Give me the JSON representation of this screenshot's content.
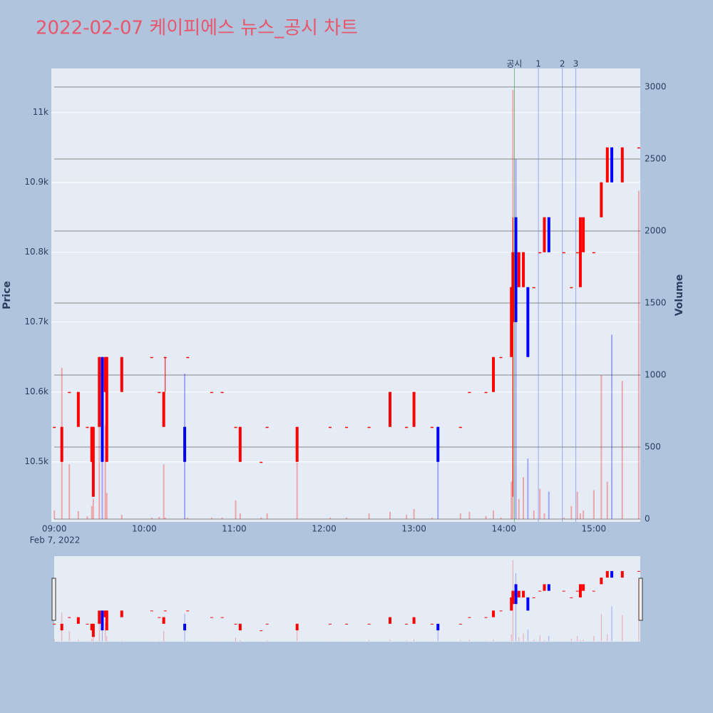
{
  "chart_data": {
    "type": "candlestick",
    "title": "2022-02-07 케이피에스 뉴스_공시 차트",
    "y_label": "Price",
    "y2_label": "Volume",
    "x_date_label": "Feb 7, 2022",
    "xlim": [
      "08:58",
      "15:31"
    ],
    "xticks": [
      "09:00",
      "10:00",
      "11:00",
      "12:00",
      "13:00",
      "14:00",
      "15:00"
    ],
    "ylim": [
      10414,
      11063
    ],
    "yticks": [
      {
        "value": 10500,
        "label": "10.5k"
      },
      {
        "value": 10600,
        "label": "10.6k"
      },
      {
        "value": 10700,
        "label": "10.7k"
      },
      {
        "value": 10800,
        "label": "10.8k"
      },
      {
        "value": 10900,
        "label": "10.9k"
      },
      {
        "value": 11000,
        "label": "11k"
      }
    ],
    "y2lim": [
      -20,
      3129
    ],
    "y2ticks": [
      0,
      500,
      1000,
      1500,
      2000,
      2500,
      3000
    ],
    "increasing_color": "#ff0000",
    "decreasing_color": "#0000ff",
    "x": [
      "09:00",
      "09:05",
      "09:10",
      "09:16",
      "09:22",
      "09:25",
      "09:26",
      "09:30",
      "09:32",
      "09:34",
      "09:35",
      "09:45",
      "10:05",
      "10:10",
      "10:13",
      "10:14",
      "10:27",
      "10:29",
      "10:45",
      "10:52",
      "11:01",
      "11:04",
      "11:18",
      "11:22",
      "11:42",
      "12:04",
      "12:15",
      "12:30",
      "12:44",
      "12:55",
      "13:00",
      "13:12",
      "13:16",
      "13:31",
      "13:37",
      "13:48",
      "13:53",
      "13:58",
      "14:05",
      "14:06",
      "14:08",
      "14:10",
      "14:13",
      "14:16",
      "14:20",
      "14:24",
      "14:27",
      "14:30",
      "14:40",
      "14:45",
      "14:49",
      "14:51",
      "14:53",
      "15:00",
      "15:05",
      "15:09",
      "15:12",
      "15:19",
      "15:30"
    ],
    "open": [
      10550,
      10500,
      10600,
      10550,
      10550,
      10500,
      10450,
      10550,
      10650,
      10600,
      10500,
      10600,
      10650,
      10600,
      10550,
      10650,
      10550,
      10650,
      10600,
      10600,
      10550,
      10500,
      10500,
      10550,
      10500,
      10550,
      10550,
      10550,
      10550,
      10550,
      10550,
      10550,
      10550,
      10550,
      10600,
      10600,
      10600,
      10650,
      10650,
      10700,
      10850,
      10750,
      10750,
      10750,
      10750,
      10800,
      10800,
      10850,
      10800,
      10750,
      10800,
      10750,
      10800,
      10800,
      10850,
      10900,
      10950,
      10900,
      10950
    ],
    "high": [
      10550,
      10550,
      10600,
      10600,
      10550,
      10550,
      10550,
      10650,
      10650,
      10650,
      10650,
      10650,
      10650,
      10600,
      10600,
      10650,
      10550,
      10650,
      10600,
      10600,
      10550,
      10550,
      10500,
      10550,
      10550,
      10550,
      10550,
      10550,
      10600,
      10550,
      10600,
      10550,
      10550,
      10550,
      10600,
      10600,
      10650,
      10650,
      10750,
      10850,
      10850,
      10800,
      10800,
      10750,
      10750,
      10800,
      10850,
      10850,
      10800,
      10750,
      10800,
      10850,
      10850,
      10800,
      10900,
      10950,
      10950,
      10950,
      10950
    ],
    "low": [
      10550,
      10500,
      10600,
      10550,
      10550,
      10500,
      10450,
      10550,
      10500,
      10600,
      10500,
      10600,
      10650,
      10600,
      10550,
      10600,
      10500,
      10650,
      10600,
      10600,
      10550,
      10500,
      10500,
      10550,
      10500,
      10550,
      10550,
      10550,
      10550,
      10550,
      10550,
      10550,
      10500,
      10550,
      10600,
      10600,
      10600,
      10650,
      10650,
      10450,
      10700,
      10750,
      10750,
      10650,
      10750,
      10800,
      10800,
      10800,
      10800,
      10750,
      10800,
      10750,
      10800,
      10800,
      10850,
      10900,
      10900,
      10900,
      10950
    ],
    "close": [
      10550,
      10550,
      10600,
      10600,
      10550,
      10550,
      10550,
      10650,
      10500,
      10650,
      10650,
      10650,
      10650,
      10600,
      10600,
      10650,
      10500,
      10650,
      10600,
      10600,
      10550,
      10550,
      10500,
      10550,
      10550,
      10550,
      10550,
      10550,
      10600,
      10550,
      10600,
      10550,
      10500,
      10550,
      10600,
      10600,
      10650,
      10650,
      10750,
      10800,
      10700,
      10800,
      10800,
      10650,
      10750,
      10800,
      10850,
      10800,
      10800,
      10750,
      10800,
      10850,
      10850,
      10800,
      10900,
      10950,
      10900,
      10950,
      10950
    ],
    "volume": [
      60,
      1050,
      380,
      55,
      20,
      90,
      140,
      640,
      400,
      650,
      180,
      30,
      10,
      15,
      380,
      10,
      1010,
      10,
      10,
      10,
      130,
      40,
      10,
      40,
      390,
      10,
      10,
      40,
      50,
      30,
      70,
      10,
      620,
      40,
      50,
      20,
      60,
      10,
      260,
      2980,
      2500,
      140,
      290,
      420,
      60,
      210,
      40,
      190,
      10,
      90,
      190,
      40,
      60,
      200,
      1000,
      260,
      1280,
      960,
      2280
    ],
    "events": [
      {
        "x": "14:07",
        "label": "공시",
        "color": "#2ca02c"
      },
      {
        "x": "14:23",
        "label": "1",
        "color": "#6677ee"
      },
      {
        "x": "14:39",
        "label": "2",
        "color": "#6677ee"
      },
      {
        "x": "14:48",
        "label": "3",
        "color": "#6677ee"
      }
    ]
  }
}
